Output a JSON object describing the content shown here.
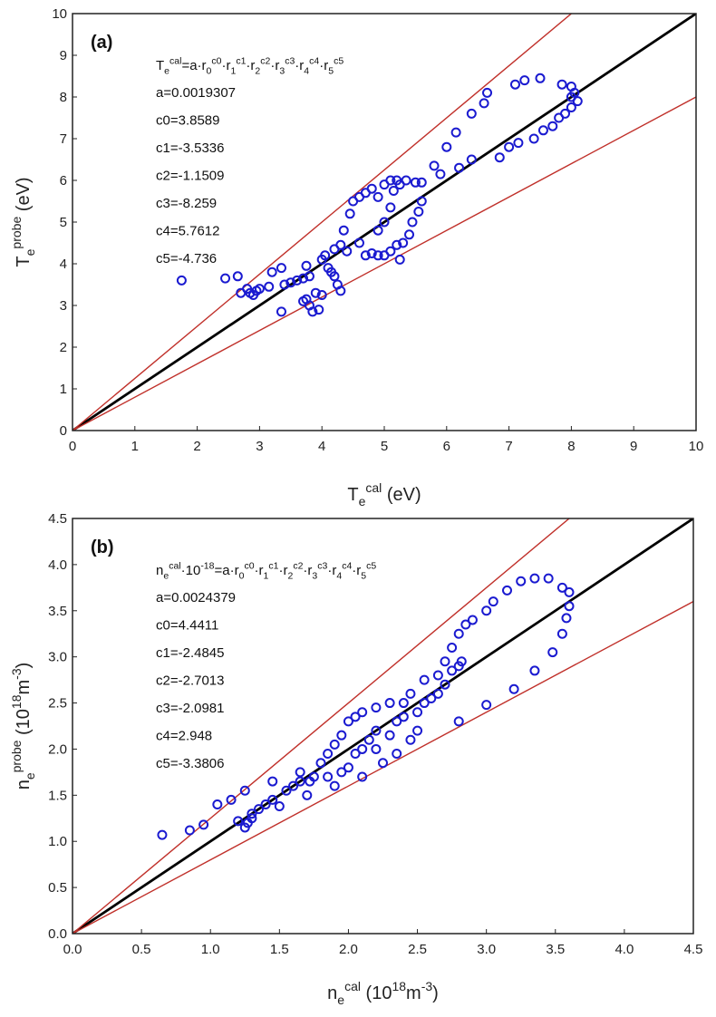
{
  "chart_data": [
    {
      "type": "scatter",
      "panel_label": "(a)",
      "xlabel": [
        {
          "t": "n",
          "v": "T"
        },
        {
          "t": "sub",
          "v": "e"
        },
        {
          "t": "sup",
          "v": "cal"
        },
        {
          "t": "n",
          "v": " (eV)"
        }
      ],
      "ylabel": [
        {
          "t": "n",
          "v": "T"
        },
        {
          "t": "sub",
          "v": "e"
        },
        {
          "t": "sup",
          "v": "probe"
        },
        {
          "t": "n",
          "v": " (eV)"
        }
      ],
      "xlim": [
        0,
        10
      ],
      "ylim": [
        0,
        10
      ],
      "xticks": [
        "0",
        "1",
        "2",
        "3",
        "4",
        "5",
        "6",
        "7",
        "8",
        "9",
        "10"
      ],
      "yticks": [
        "0",
        "1",
        "2",
        "3",
        "4",
        "5",
        "6",
        "7",
        "8",
        "9",
        "10"
      ],
      "equation": [
        {
          "t": "n",
          "v": "T"
        },
        {
          "t": "sub",
          "v": "e"
        },
        {
          "t": "sup",
          "v": "cal"
        },
        {
          "t": "n",
          "v": "=a·r"
        },
        {
          "t": "sub",
          "v": "0"
        },
        {
          "t": "sup",
          "v": "c0"
        },
        {
          "t": "n",
          "v": "·r"
        },
        {
          "t": "sub",
          "v": "1"
        },
        {
          "t": "sup",
          "v": "c1"
        },
        {
          "t": "n",
          "v": "·r"
        },
        {
          "t": "sub",
          "v": "2"
        },
        {
          "t": "sup",
          "v": "c2"
        },
        {
          "t": "n",
          "v": "·r"
        },
        {
          "t": "sub",
          "v": "3"
        },
        {
          "t": "sup",
          "v": "c3"
        },
        {
          "t": "n",
          "v": "·r"
        },
        {
          "t": "sub",
          "v": "4"
        },
        {
          "t": "sup",
          "v": "c4"
        },
        {
          "t": "n",
          "v": "·r"
        },
        {
          "t": "sub",
          "v": "5"
        },
        {
          "t": "sup",
          "v": "c5"
        }
      ],
      "coefficients": [
        "a=0.0019307",
        "c0=3.8589",
        "c1=-3.5336",
        "c2=-1.1509",
        "c3=-8.259",
        "c4=5.7612",
        "c5=-4.736"
      ],
      "reference_lines": [
        {
          "slope": 1.0,
          "color": "#000000"
        },
        {
          "slope": 1.25,
          "color": "#c0302a"
        },
        {
          "slope": 0.8,
          "color": "#c0302a"
        }
      ],
      "marker_color": "#1a1ad0",
      "points": [
        [
          1.75,
          3.6
        ],
        [
          2.45,
          3.65
        ],
        [
          2.65,
          3.7
        ],
        [
          2.7,
          3.3
        ],
        [
          2.8,
          3.4
        ],
        [
          2.85,
          3.3
        ],
        [
          2.9,
          3.25
        ],
        [
          2.95,
          3.35
        ],
        [
          3.0,
          3.4
        ],
        [
          3.15,
          3.45
        ],
        [
          3.2,
          3.8
        ],
        [
          3.35,
          3.9
        ],
        [
          3.35,
          2.85
        ],
        [
          3.4,
          3.5
        ],
        [
          3.5,
          3.55
        ],
        [
          3.6,
          3.6
        ],
        [
          3.7,
          3.65
        ],
        [
          3.75,
          3.95
        ],
        [
          3.8,
          3.7
        ],
        [
          3.7,
          3.1
        ],
        [
          3.75,
          3.15
        ],
        [
          3.8,
          3.0
        ],
        [
          3.85,
          2.85
        ],
        [
          3.95,
          2.9
        ],
        [
          4.0,
          3.25
        ],
        [
          3.9,
          3.3
        ],
        [
          4.0,
          4.1
        ],
        [
          4.05,
          4.2
        ],
        [
          4.1,
          3.9
        ],
        [
          4.15,
          3.8
        ],
        [
          4.2,
          3.7
        ],
        [
          4.25,
          3.5
        ],
        [
          4.3,
          3.35
        ],
        [
          4.2,
          4.35
        ],
        [
          4.3,
          4.45
        ],
        [
          4.35,
          4.8
        ],
        [
          4.45,
          5.2
        ],
        [
          4.5,
          5.5
        ],
        [
          4.6,
          5.6
        ],
        [
          4.7,
          5.7
        ],
        [
          4.8,
          5.8
        ],
        [
          4.9,
          5.6
        ],
        [
          5.0,
          5.9
        ],
        [
          5.1,
          6.0
        ],
        [
          5.15,
          5.75
        ],
        [
          5.2,
          6.0
        ],
        [
          5.25,
          5.9
        ],
        [
          5.35,
          6.0
        ],
        [
          5.5,
          5.95
        ],
        [
          5.6,
          5.95
        ],
        [
          5.6,
          5.5
        ],
        [
          5.55,
          5.25
        ],
        [
          5.45,
          5.0
        ],
        [
          5.4,
          4.7
        ],
        [
          5.3,
          4.5
        ],
        [
          5.2,
          4.45
        ],
        [
          5.25,
          4.1
        ],
        [
          5.1,
          4.3
        ],
        [
          5.0,
          4.2
        ],
        [
          4.9,
          4.2
        ],
        [
          4.8,
          4.25
        ],
        [
          4.7,
          4.2
        ],
        [
          4.9,
          4.8
        ],
        [
          5.0,
          5.0
        ],
        [
          5.1,
          5.35
        ],
        [
          4.6,
          4.5
        ],
        [
          4.4,
          4.3
        ],
        [
          5.8,
          6.35
        ],
        [
          5.9,
          6.15
        ],
        [
          6.0,
          6.8
        ],
        [
          6.15,
          7.15
        ],
        [
          6.2,
          6.3
        ],
        [
          6.4,
          6.5
        ],
        [
          6.4,
          7.6
        ],
        [
          6.6,
          7.85
        ],
        [
          6.65,
          8.1
        ],
        [
          6.85,
          6.55
        ],
        [
          7.0,
          6.8
        ],
        [
          7.1,
          8.3
        ],
        [
          7.15,
          6.9
        ],
        [
          7.25,
          8.4
        ],
        [
          7.4,
          7.0
        ],
        [
          7.5,
          8.45
        ],
        [
          7.55,
          7.2
        ],
        [
          7.7,
          7.3
        ],
        [
          7.8,
          7.5
        ],
        [
          7.85,
          8.3
        ],
        [
          7.9,
          7.6
        ],
        [
          8.0,
          7.75
        ],
        [
          8.0,
          8.0
        ],
        [
          8.05,
          8.1
        ],
        [
          8.0,
          8.25
        ],
        [
          8.1,
          7.9
        ]
      ]
    },
    {
      "type": "scatter",
      "panel_label": "(b)",
      "xlabel": [
        {
          "t": "n",
          "v": "n"
        },
        {
          "t": "sub",
          "v": "e"
        },
        {
          "t": "sup",
          "v": "cal"
        },
        {
          "t": "n",
          "v": " (10"
        },
        {
          "t": "sup",
          "v": "18"
        },
        {
          "t": "n",
          "v": "m"
        },
        {
          "t": "sup",
          "v": "-3"
        },
        {
          "t": "n",
          "v": ")"
        }
      ],
      "ylabel": [
        {
          "t": "n",
          "v": "n"
        },
        {
          "t": "sub",
          "v": "e"
        },
        {
          "t": "sup",
          "v": "probe"
        },
        {
          "t": "n",
          "v": " (10"
        },
        {
          "t": "sup",
          "v": "18"
        },
        {
          "t": "n",
          "v": "m"
        },
        {
          "t": "sup",
          "v": "-3"
        },
        {
          "t": "n",
          "v": ")"
        }
      ],
      "xlim": [
        0,
        4.5
      ],
      "ylim": [
        0,
        4.5
      ],
      "xticks": [
        "0.0",
        "0.5",
        "1.0",
        "1.5",
        "2.0",
        "2.5",
        "3.0",
        "3.5",
        "4.0",
        "4.5"
      ],
      "yticks": [
        "0.0",
        "0.5",
        "1.0",
        "1.5",
        "2.0",
        "2.5",
        "3.0",
        "3.5",
        "4.0",
        "4.5"
      ],
      "equation": [
        {
          "t": "n",
          "v": "n"
        },
        {
          "t": "sub",
          "v": "e"
        },
        {
          "t": "sup",
          "v": "cal"
        },
        {
          "t": "n",
          "v": "·10"
        },
        {
          "t": "sup",
          "v": "-18"
        },
        {
          "t": "n",
          "v": "=a·r"
        },
        {
          "t": "sub",
          "v": "0"
        },
        {
          "t": "sup",
          "v": "c0"
        },
        {
          "t": "n",
          "v": "·r"
        },
        {
          "t": "sub",
          "v": "1"
        },
        {
          "t": "sup",
          "v": "c1"
        },
        {
          "t": "n",
          "v": "·r"
        },
        {
          "t": "sub",
          "v": "2"
        },
        {
          "t": "sup",
          "v": "c2"
        },
        {
          "t": "n",
          "v": "·r"
        },
        {
          "t": "sub",
          "v": "3"
        },
        {
          "t": "sup",
          "v": "c3"
        },
        {
          "t": "n",
          "v": "·r"
        },
        {
          "t": "sub",
          "v": "4"
        },
        {
          "t": "sup",
          "v": "c4"
        },
        {
          "t": "n",
          "v": "·r"
        },
        {
          "t": "sub",
          "v": "5"
        },
        {
          "t": "sup",
          "v": "c5"
        }
      ],
      "coefficients": [
        "a=0.0024379",
        "c0=4.4411",
        "c1=-2.4845",
        "c2=-2.7013",
        "c3=-2.0981",
        "c4=2.948",
        "c5=-3.3806"
      ],
      "reference_lines": [
        {
          "slope": 1.0,
          "color": "#000000"
        },
        {
          "slope": 1.25,
          "color": "#c0302a"
        },
        {
          "slope": 0.8,
          "color": "#c0302a"
        }
      ],
      "marker_color": "#1a1ad0",
      "points": [
        [
          0.65,
          1.07
        ],
        [
          0.85,
          1.12
        ],
        [
          0.95,
          1.18
        ],
        [
          1.05,
          1.4
        ],
        [
          1.15,
          1.45
        ],
        [
          1.2,
          1.22
        ],
        [
          1.25,
          1.15
        ],
        [
          1.27,
          1.2
        ],
        [
          1.3,
          1.25
        ],
        [
          1.25,
          1.55
        ],
        [
          1.3,
          1.3
        ],
        [
          1.35,
          1.35
        ],
        [
          1.4,
          1.4
        ],
        [
          1.45,
          1.45
        ],
        [
          1.45,
          1.65
        ],
        [
          1.5,
          1.38
        ],
        [
          1.55,
          1.55
        ],
        [
          1.6,
          1.6
        ],
        [
          1.65,
          1.65
        ],
        [
          1.65,
          1.75
        ],
        [
          1.7,
          1.5
        ],
        [
          1.72,
          1.65
        ],
        [
          1.75,
          1.7
        ],
        [
          1.8,
          1.85
        ],
        [
          1.85,
          1.95
        ],
        [
          1.9,
          2.05
        ],
        [
          1.95,
          2.15
        ],
        [
          2.0,
          2.3
        ],
        [
          2.05,
          2.35
        ],
        [
          2.1,
          2.4
        ],
        [
          2.2,
          2.45
        ],
        [
          1.85,
          1.7
        ],
        [
          1.9,
          1.6
        ],
        [
          1.95,
          1.75
        ],
        [
          2.0,
          1.8
        ],
        [
          2.05,
          1.95
        ],
        [
          2.1,
          2.0
        ],
        [
          2.1,
          1.7
        ],
        [
          2.15,
          2.1
        ],
        [
          2.2,
          2.2
        ],
        [
          2.2,
          2.0
        ],
        [
          2.25,
          1.85
        ],
        [
          2.3,
          2.15
        ],
        [
          2.3,
          2.5
        ],
        [
          2.35,
          2.3
        ],
        [
          2.35,
          1.95
        ],
        [
          2.4,
          2.35
        ],
        [
          2.4,
          2.5
        ],
        [
          2.45,
          2.1
        ],
        [
          2.45,
          2.6
        ],
        [
          2.5,
          2.4
        ],
        [
          2.5,
          2.2
        ],
        [
          2.55,
          2.5
        ],
        [
          2.55,
          2.75
        ],
        [
          2.6,
          2.55
        ],
        [
          2.65,
          2.6
        ],
        [
          2.65,
          2.8
        ],
        [
          2.7,
          2.7
        ],
        [
          2.7,
          2.95
        ],
        [
          2.75,
          2.85
        ],
        [
          2.75,
          3.1
        ],
        [
          2.8,
          2.9
        ],
        [
          2.8,
          3.25
        ],
        [
          2.82,
          2.95
        ],
        [
          2.85,
          3.35
        ],
        [
          2.9,
          3.4
        ],
        [
          3.0,
          3.5
        ],
        [
          3.05,
          3.6
        ],
        [
          3.15,
          3.72
        ],
        [
          3.25,
          3.82
        ],
        [
          3.35,
          3.85
        ],
        [
          3.45,
          3.85
        ],
        [
          3.55,
          3.75
        ],
        [
          3.6,
          3.7
        ],
        [
          3.6,
          3.55
        ],
        [
          3.58,
          3.42
        ],
        [
          3.55,
          3.25
        ],
        [
          3.48,
          3.05
        ],
        [
          3.35,
          2.85
        ],
        [
          3.2,
          2.65
        ],
        [
          3.0,
          2.48
        ],
        [
          2.8,
          2.3
        ]
      ]
    }
  ]
}
